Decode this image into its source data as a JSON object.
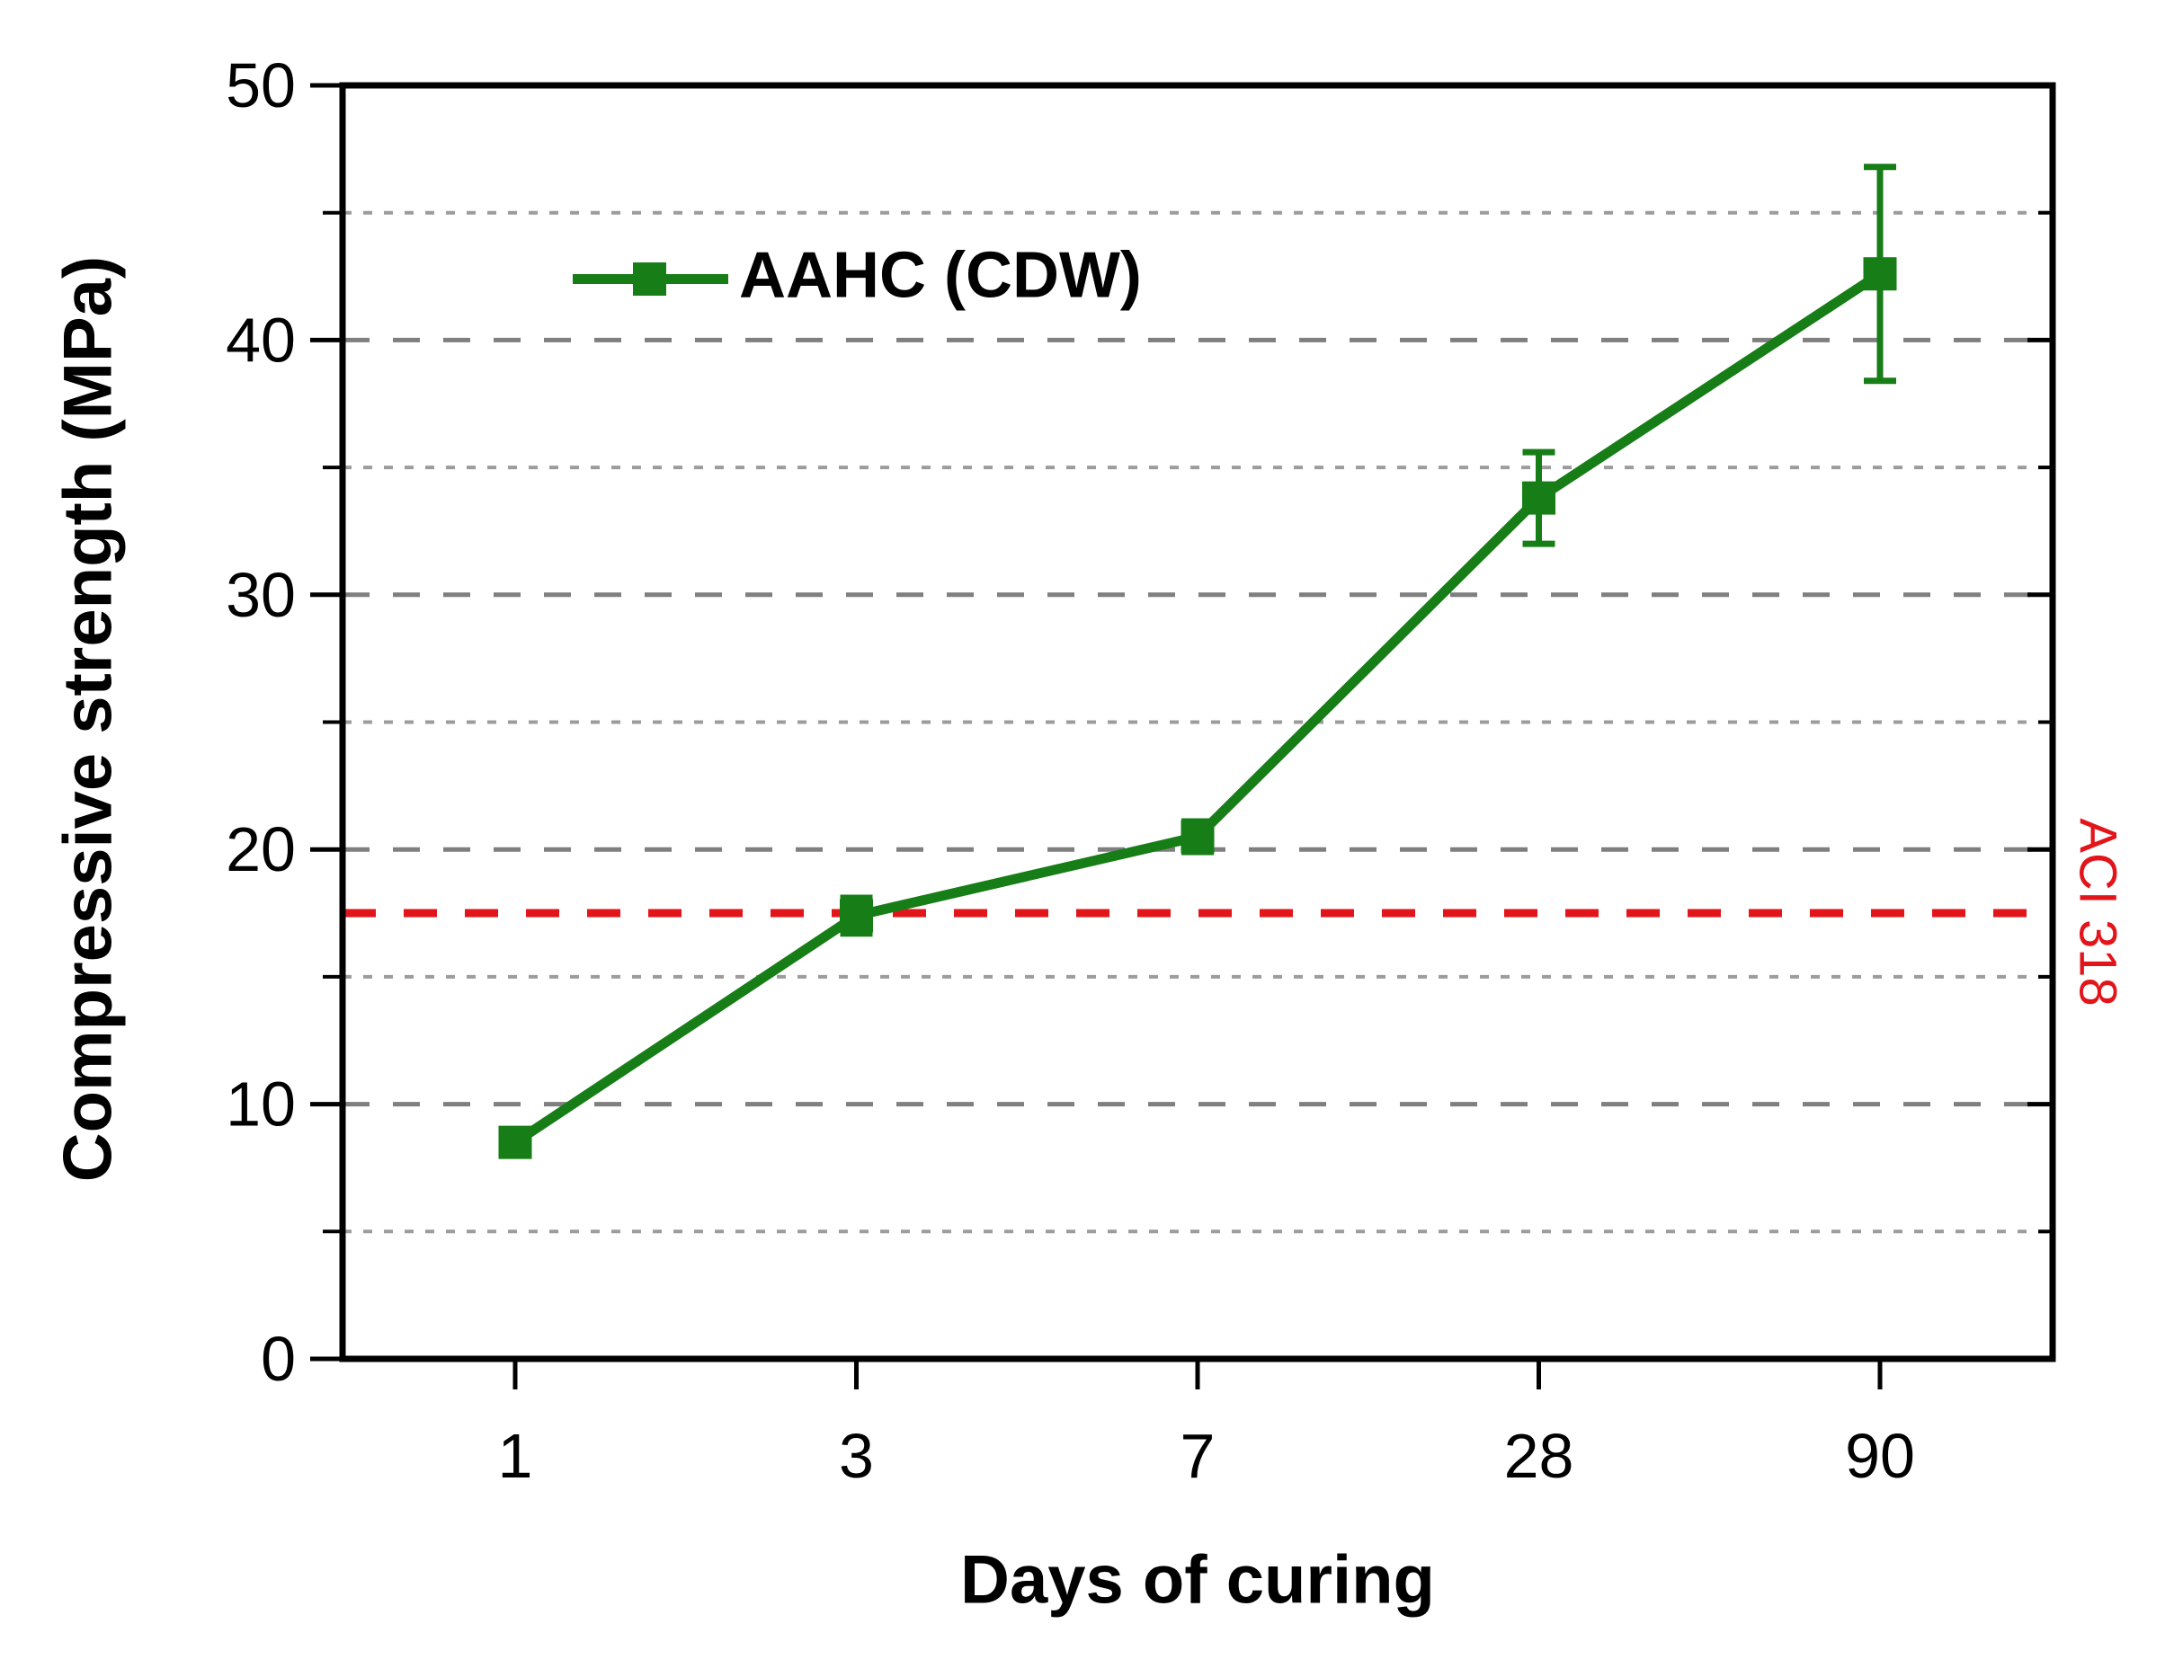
{
  "chart_data": {
    "type": "line",
    "title": "",
    "xlabel": "Days of curing",
    "ylabel": "Compressive strength (MPa)",
    "categories": [
      "1",
      "3",
      "7",
      "28",
      "90"
    ],
    "series": [
      {
        "name": "AAHC (CDW)",
        "values": [
          8.5,
          17.4,
          20.5,
          33.8,
          42.6
        ],
        "errors": [
          0.5,
          0.7,
          0.6,
          1.8,
          4.2
        ],
        "marker": "square"
      }
    ],
    "reference_line": {
      "label": "ACI 318",
      "value": 17.5,
      "style": "dashed"
    },
    "ylim": [
      0,
      50
    ],
    "yticks_major": [
      0,
      10,
      20,
      30,
      40,
      50
    ],
    "yticks_minor": [
      5,
      15,
      25,
      35,
      45
    ],
    "grid": {
      "major": "dashed",
      "minor": "dotted"
    },
    "legend_position": "upper-left-inside"
  },
  "axes": {
    "x_title": "Days of curing",
    "y_title": "Compressive strength (MPa)"
  },
  "colors": {
    "series_green": "#177d17",
    "reference_red": "#e2151b",
    "axis_black": "#000000",
    "grid_major": "#7f7f7f",
    "grid_minor": "#9c9c9c"
  }
}
